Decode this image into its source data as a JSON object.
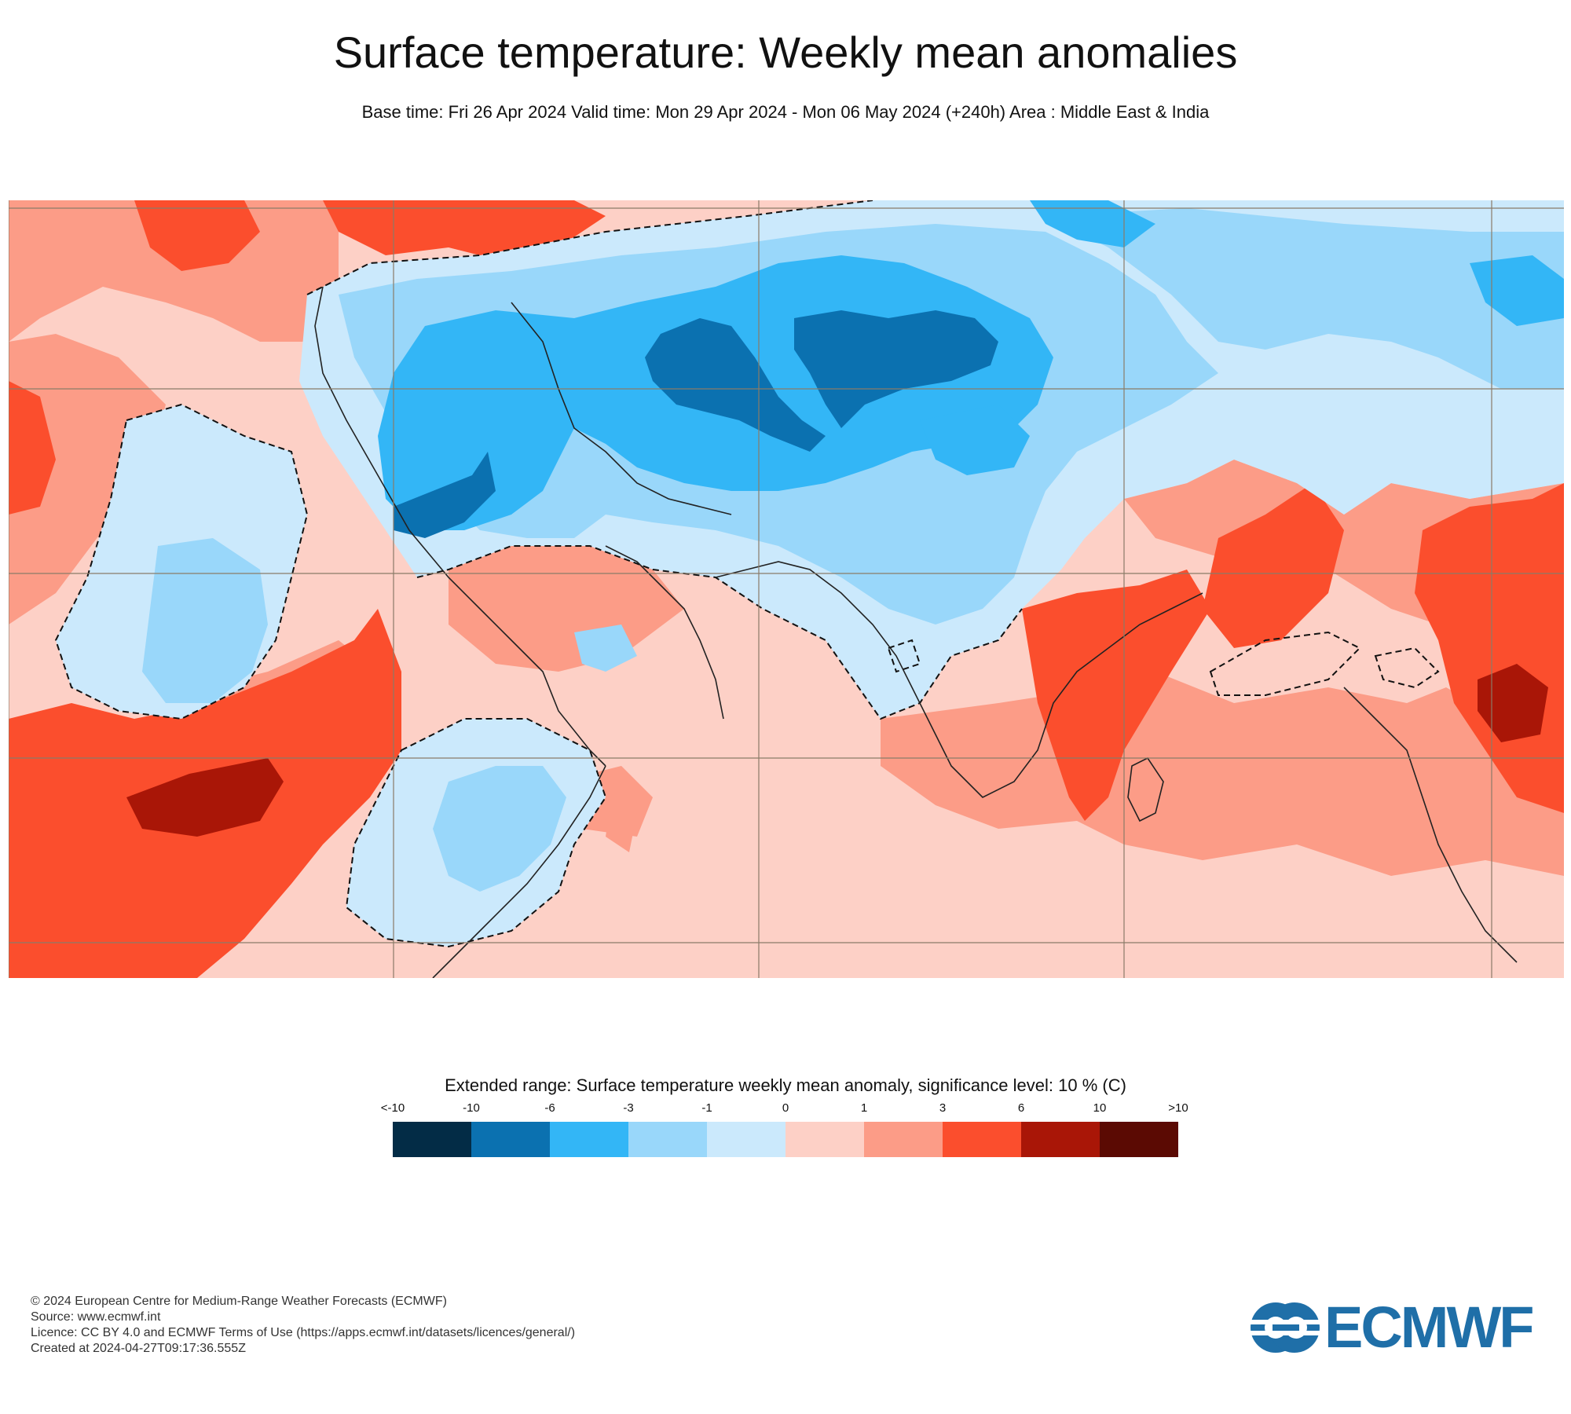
{
  "header": {
    "title": "Surface temperature: Weekly mean anomalies",
    "subtitle": "Base time: Fri 26 Apr 2024 Valid time: Mon 29 Apr 2024 - Mon 06 May 2024 (+240h) Area : Middle East & India"
  },
  "map": {
    "area": "Middle East & India",
    "field": "Surface temperature weekly mean anomaly",
    "significance_contour": "dashed"
  },
  "legend": {
    "title": "Extended range: Surface temperature weekly mean anomaly, significance level: 10 % (C)",
    "labels": [
      "<-10",
      "-10",
      "-6",
      "-3",
      "-1",
      "0",
      "1",
      "3",
      "6",
      "10",
      ">10"
    ],
    "colors": [
      "#032c46",
      "#0b71b0",
      "#33b6f6",
      "#99d7fa",
      "#cbe9fc",
      "#fdd0c6",
      "#fc9c87",
      "#fb4e2d",
      "#a91607",
      "#5b0a03"
    ]
  },
  "footer": {
    "copyright": "© 2024 European Centre for Medium-Range Weather Forecasts (ECMWF)",
    "source": "Source: www.ecmwf.int",
    "licence": "Licence: CC BY 4.0 and ECMWF Terms of Use (https://apps.ecmwf.int/datasets/licences/general/)",
    "created": "Created at 2024-04-27T09:17:36.555Z"
  },
  "logo": {
    "text": "ECMWF",
    "color": "#1f6fa8",
    "icon": "ecmwf-logo-icon"
  }
}
